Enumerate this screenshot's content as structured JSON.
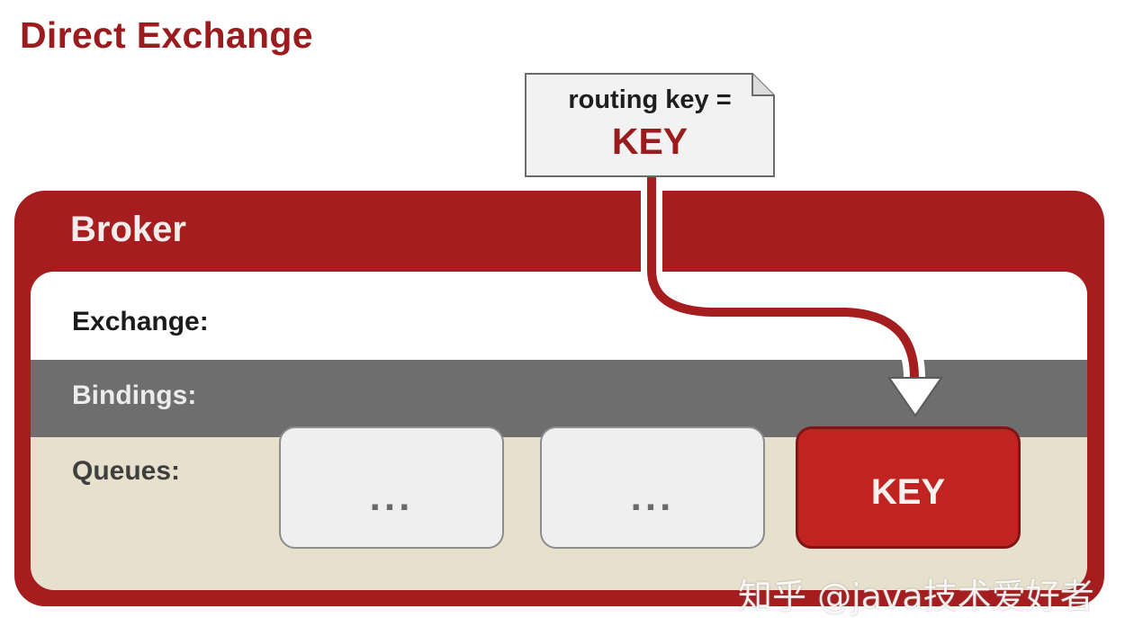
{
  "title": "Direct Exchange",
  "message": {
    "routing_key_label": "routing key =",
    "routing_key_value": "KEY"
  },
  "broker": {
    "label": "Broker",
    "rows": {
      "exchange": "Exchange:",
      "bindings": "Bindings:",
      "queues": "Queues:"
    },
    "queues": [
      {
        "label": "..."
      },
      {
        "label": "..."
      },
      {
        "label": "KEY",
        "highlighted": true
      }
    ]
  },
  "watermark": "知乎 @java技术爱好者",
  "colors": {
    "accent_red": "#a51d1f",
    "title_red": "#9b1c1f",
    "highlight_queue": "#c12420",
    "bindings_gray": "#6e6e6e",
    "queues_beige": "#e7e0cd"
  }
}
